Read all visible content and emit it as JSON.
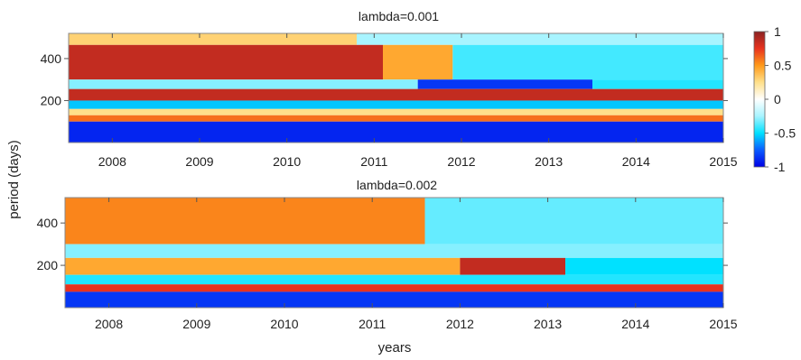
{
  "figure": {
    "shared_ylabel": "period (days)",
    "shared_xlabel": "years"
  },
  "colorbar": {
    "range": [
      -1,
      1
    ],
    "ticks": [
      1,
      0.5,
      0,
      -0.5,
      -1
    ],
    "tick_labels": [
      "1",
      "0.5",
      "0",
      "-0.5",
      "-1"
    ],
    "colormap": [
      "#0000e6",
      "#0a5cff",
      "#00e1ff",
      "#a8f4ff",
      "#ffffff",
      "#ffe08a",
      "#ff9a1a",
      "#e8321e",
      "#8a2222"
    ]
  },
  "chart_data": [
    {
      "type": "heatmap",
      "title": "lambda=0.001",
      "xlabel": "",
      "ylabel": "period (days)",
      "xlim": [
        2007.5,
        2015
      ],
      "ylim": [
        0,
        520
      ],
      "xticks": [
        2008,
        2009,
        2010,
        2011,
        2012,
        2013,
        2014,
        2015
      ],
      "xtick_labels": [
        "2008",
        "2009",
        "2010",
        "2011",
        "2012",
        "2013",
        "2014",
        "2015"
      ],
      "yticks": [
        200,
        400
      ],
      "ytick_labels": [
        "200",
        "400"
      ],
      "bands": [
        {
          "period_range": [
            465,
            520
          ],
          "x_from": 2007.5,
          "x_to": 2010.8,
          "value": 0.3
        },
        {
          "period_range": [
            465,
            520
          ],
          "x_from": 2010.8,
          "x_to": 2015,
          "value": -0.25
        },
        {
          "period_range": [
            300,
            465
          ],
          "x_from": 2007.5,
          "x_to": 2011.1,
          "value": 0.85
        },
        {
          "period_range": [
            300,
            465
          ],
          "x_from": 2011.1,
          "x_to": 2011.9,
          "value": 0.45
        },
        {
          "period_range": [
            300,
            465
          ],
          "x_from": 2011.9,
          "x_to": 2015,
          "value": -0.4
        },
        {
          "period_range": [
            255,
            300
          ],
          "x_from": 2007.5,
          "x_to": 2011.5,
          "value": -0.3
        },
        {
          "period_range": [
            255,
            300
          ],
          "x_from": 2011.5,
          "x_to": 2013.5,
          "value": -0.85
        },
        {
          "period_range": [
            255,
            300
          ],
          "x_from": 2013.5,
          "x_to": 2015,
          "value": -0.45
        },
        {
          "period_range": [
            200,
            255
          ],
          "x_from": 2007.5,
          "x_to": 2015,
          "value": 0.85
        },
        {
          "period_range": [
            160,
            200
          ],
          "x_from": 2007.5,
          "x_to": 2015,
          "value": -0.55
        },
        {
          "period_range": [
            130,
            160
          ],
          "x_from": 2007.5,
          "x_to": 2015,
          "value": 0.25
        },
        {
          "period_range": [
            100,
            130
          ],
          "x_from": 2007.5,
          "x_to": 2015,
          "value": 0.6
        },
        {
          "period_range": [
            0,
            100
          ],
          "x_from": 2007.5,
          "x_to": 2015,
          "value": -0.9
        }
      ]
    },
    {
      "type": "heatmap",
      "title": "lambda=0.002",
      "xlabel": "years",
      "ylabel": "",
      "xlim": [
        2007.5,
        2015
      ],
      "ylim": [
        0,
        520
      ],
      "xticks": [
        2008,
        2009,
        2010,
        2011,
        2012,
        2013,
        2014,
        2015
      ],
      "xtick_labels": [
        "2008",
        "2009",
        "2010",
        "2011",
        "2012",
        "2013",
        "2014",
        "2015"
      ],
      "yticks": [
        200,
        400
      ],
      "ytick_labels": [
        "200",
        "400"
      ],
      "bands": [
        {
          "period_range": [
            300,
            520
          ],
          "x_from": 2007.5,
          "x_to": 2011.6,
          "value": 0.55
        },
        {
          "period_range": [
            300,
            520
          ],
          "x_from": 2011.6,
          "x_to": 2015,
          "value": -0.35
        },
        {
          "period_range": [
            235,
            300
          ],
          "x_from": 2007.5,
          "x_to": 2015,
          "value": -0.3
        },
        {
          "period_range": [
            155,
            235
          ],
          "x_from": 2007.5,
          "x_to": 2012.0,
          "value": 0.45
        },
        {
          "period_range": [
            155,
            235
          ],
          "x_from": 2012.0,
          "x_to": 2013.2,
          "value": 0.85
        },
        {
          "period_range": [
            155,
            235
          ],
          "x_from": 2013.2,
          "x_to": 2015,
          "value": -0.5
        },
        {
          "period_range": [
            110,
            155
          ],
          "x_from": 2007.5,
          "x_to": 2015,
          "value": -0.45
        },
        {
          "period_range": [
            75,
            110
          ],
          "x_from": 2007.5,
          "x_to": 2015,
          "value": 0.75
        },
        {
          "period_range": [
            0,
            75
          ],
          "x_from": 2007.5,
          "x_to": 2015,
          "value": -0.85
        }
      ]
    }
  ]
}
